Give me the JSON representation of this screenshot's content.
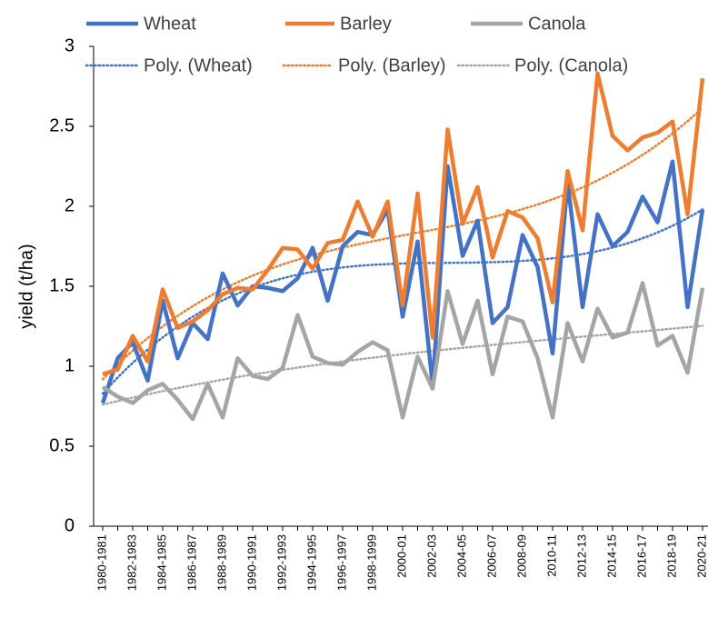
{
  "chart_data": {
    "type": "line",
    "y_label": "yield (t/ha)",
    "categories": [
      "1980-1981",
      null,
      "1982-1983",
      null,
      "1984-1985",
      null,
      "1986-1987",
      null,
      "1988-1989",
      null,
      "1990-1991",
      null,
      "1992-1993",
      null,
      "1994-1995",
      null,
      "1996-1997",
      null,
      "1998-1999",
      null,
      "2000-01",
      null,
      "2002-03",
      null,
      "2004-05",
      null,
      "2006-07",
      null,
      "2008-09",
      null,
      "2010-11",
      null,
      "2012-13",
      null,
      "2014-15",
      null,
      "2016-17",
      null,
      "2018-19",
      null,
      "2020-21"
    ],
    "series": [
      {
        "name": "Wheat",
        "color": "#4472c4",
        "values": [
          0.77,
          1.05,
          1.15,
          0.91,
          1.41,
          1.05,
          1.27,
          1.17,
          1.58,
          1.38,
          1.5,
          1.49,
          1.47,
          1.55,
          1.74,
          1.41,
          1.75,
          1.84,
          1.82,
          1.98,
          1.31,
          1.78,
          0.88,
          2.25,
          1.69,
          1.91,
          1.27,
          1.37,
          1.82,
          1.62,
          1.08,
          2.15,
          1.37,
          1.95,
          1.75,
          1.84,
          2.06,
          1.9,
          2.28,
          1.37,
          1.98
        ],
        "trendline": {
          "name": "Poly. (Wheat)",
          "order": 3
        }
      },
      {
        "name": "Barley",
        "color": "#ed7d31",
        "values": [
          0.95,
          0.98,
          1.19,
          1.03,
          1.48,
          1.24,
          1.28,
          1.35,
          1.45,
          1.49,
          1.48,
          1.6,
          1.74,
          1.73,
          1.61,
          1.77,
          1.79,
          2.03,
          1.81,
          2.03,
          1.38,
          2.08,
          1.18,
          2.48,
          1.89,
          2.12,
          1.68,
          1.97,
          1.93,
          1.8,
          1.4,
          2.22,
          1.85,
          2.83,
          2.44,
          2.35,
          2.43,
          2.46,
          2.53,
          1.95,
          2.8
        ],
        "trendline": {
          "name": "Poly. (Barley)",
          "order": 3
        }
      },
      {
        "name": "Canola",
        "color": "#a5a5a5",
        "values": [
          0.87,
          0.81,
          0.77,
          0.85,
          0.89,
          0.79,
          0.67,
          0.89,
          0.68,
          1.05,
          0.94,
          0.92,
          0.99,
          1.32,
          1.06,
          1.02,
          1.01,
          1.09,
          1.15,
          1.1,
          0.68,
          1.06,
          0.86,
          1.47,
          1.14,
          1.41,
          0.95,
          1.31,
          1.28,
          1.05,
          0.68,
          1.27,
          1.03,
          1.36,
          1.18,
          1.21,
          1.52,
          1.13,
          1.19,
          0.96,
          1.49
        ],
        "trendline": {
          "name": "Poly. (Canola)",
          "order": 3
        }
      }
    ],
    "ylim": [
      0,
      3
    ],
    "yticks": [
      0,
      0.5,
      1,
      1.5,
      2,
      2.5,
      3
    ],
    "grid": false,
    "legend": "top"
  }
}
